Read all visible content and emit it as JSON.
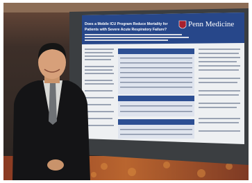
{
  "poster": {
    "title_lines": [
      "Does a Mobile ICU Program Reduce Mortality for",
      "Patients with Severe Acute Respiratory Failure?"
    ],
    "logo": "Penn Medicine"
  }
}
